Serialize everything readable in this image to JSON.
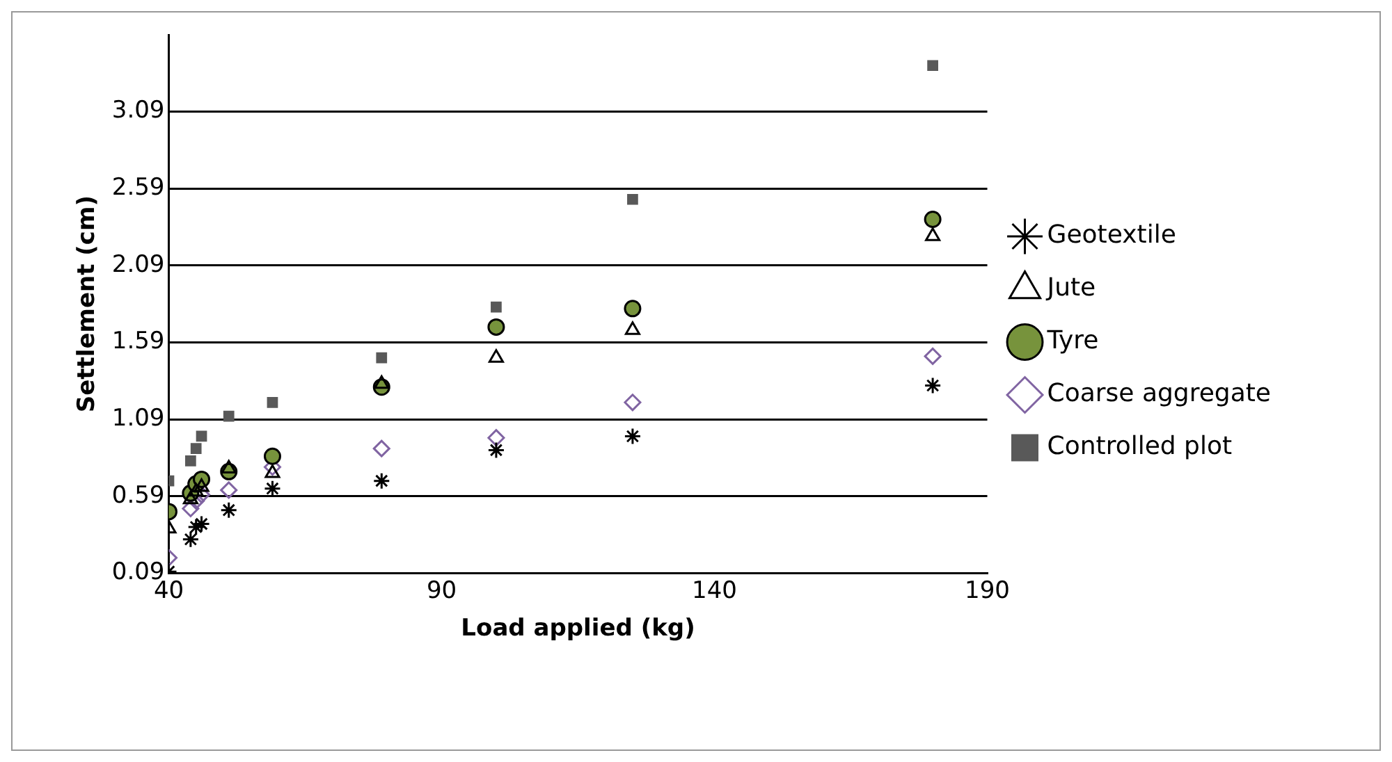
{
  "chart_data": {
    "type": "scatter",
    "xlabel": "Load applied (kg)",
    "ylabel": "Settlement (cm)",
    "x": [
      40,
      44,
      45,
      46,
      51,
      59,
      79,
      100,
      125,
      180
    ],
    "series": [
      {
        "name": "Geotextile",
        "color": "#000000",
        "marker": "cross",
        "values": [
          0.1,
          0.31,
          0.39,
          0.41,
          0.5,
          0.64,
          0.69,
          0.89,
          0.98,
          1.31
        ]
      },
      {
        "name": "Jute",
        "color": "#000000",
        "marker": "triangle",
        "values": [
          0.38,
          0.57,
          0.62,
          0.65,
          0.77,
          0.74,
          1.32,
          1.49,
          1.67,
          2.28
        ]
      },
      {
        "name": "Tyre",
        "color": "#77933c",
        "marker": "circle",
        "values": [
          0.49,
          0.61,
          0.67,
          0.7,
          0.75,
          0.85,
          1.3,
          1.69,
          1.81,
          2.39
        ]
      },
      {
        "name": "Coarse aggregate",
        "color": "#8064a2",
        "marker": "diamond",
        "values": [
          0.19,
          0.51,
          0.56,
          0.6,
          0.63,
          0.78,
          0.9,
          0.97,
          1.2,
          1.5
        ]
      },
      {
        "name": "Controlled plot",
        "color": "#595959",
        "marker": "square",
        "values": [
          0.69,
          0.82,
          0.9,
          0.98,
          1.11,
          1.2,
          1.49,
          1.82,
          2.52,
          3.39
        ]
      }
    ],
    "xlim": [
      40,
      190
    ],
    "xticks": [
      40,
      90,
      140,
      190
    ],
    "ylim": [
      0.09,
      3.59
    ],
    "yticks": [
      0.09,
      0.59,
      1.09,
      1.59,
      2.09,
      2.59,
      3.09
    ],
    "grid": "y",
    "legend": "right"
  }
}
